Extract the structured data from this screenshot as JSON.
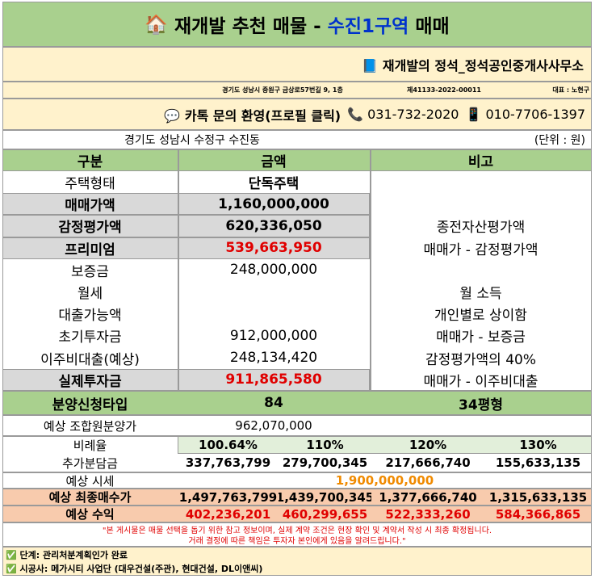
{
  "header": {
    "icon": "🏠",
    "title_before": "재개발 추천 매물 - ",
    "title_highlight": "수진1구역",
    "title_after": " 매매"
  },
  "agency": {
    "name": "📘 재개발의 정석_정석공인중개사사무소",
    "address": "경기도 성남시 중원구 금상로57번길 9, 1층",
    "registration": "제41133-2022-00011",
    "representative": "대표 : 노현구"
  },
  "contact": {
    "kakao": "💬 카톡 문의 환영(프로필 클릭)",
    "phone": "📞 031-732-2020",
    "mobile": "📱 010-7706-1397"
  },
  "location": "경기도 성남시 수정구 수진동",
  "unit": "(단위 : 원)",
  "table": {
    "columns": [
      "구분",
      "금액",
      "비고"
    ],
    "rows": [
      [
        "주택형태",
        "단독주택",
        null
      ],
      [
        "매매가액",
        "1,160,000,000",
        null
      ],
      [
        "감정평가액",
        "620,336,050",
        "종전자산평가액"
      ],
      [
        "프리미엄",
        "539,663,950",
        "매매가 - 감정평가액"
      ],
      [
        "보증금",
        "248,000,000",
        null
      ],
      [
        "월세",
        null,
        "월 소득"
      ],
      [
        "대출가능액",
        null,
        "개인별로 상이함"
      ],
      [
        "초기투자금",
        "912,000,000",
        "매매가 - 보증금"
      ],
      [
        "이주비대출(예상)",
        "248,134,420",
        "감정평가액의 40%"
      ],
      [
        "실제투자금",
        "911,865,580",
        "매매가 - 이주비대출"
      ]
    ]
  },
  "type_row": [
    "분양신청타입",
    "84",
    "34평형"
  ],
  "member_price": [
    "예상 조합원분양가",
    "962,070,000"
  ],
  "scenarios": {
    "rows": [
      [
        "비례율",
        "100.64%",
        "110%",
        "120%",
        "130%"
      ],
      [
        "추가분담금",
        "337,763,799",
        "279,700,345",
        "217,666,740",
        "155,633,135"
      ]
    ]
  },
  "market": [
    "예상 시세",
    "1,900,000,000"
  ],
  "final": {
    "rows": [
      [
        "예상 최종매수가",
        "1,497,763,799",
        "1,439,700,345",
        "1,377,666,740",
        "1,315,633,135"
      ],
      [
        "예상 수익",
        "402,236,201",
        "460,299,655",
        "522,333,260",
        "584,366,865"
      ]
    ]
  },
  "notice": [
    "\"본 게시물은 매물 선택을 돕기 위한 참고 정보이며, 실제 계약 조건은 현장 확인 및 계약서 작성 시 최종 확정됩니다.",
    "거래 결정에 따른 책임은 투자자 본인에게 있음을 알려드립니다.\""
  ],
  "footer": [
    "✅ 단계: 관리처분계획인가 완료",
    "✅ 시공사: 메가시티 사업단 (대우건설(주관), 현대건설, DL이앤씨)"
  ]
}
